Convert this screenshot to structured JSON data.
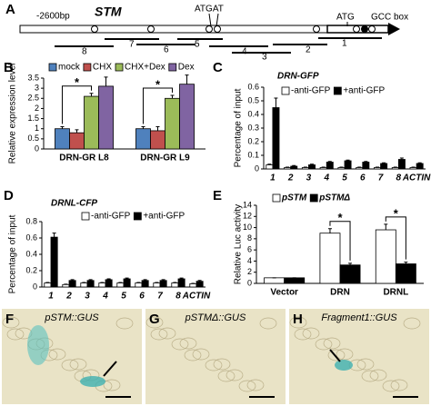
{
  "diagram": {
    "panel": "A",
    "start": "-2600bp",
    "gene": "STM",
    "motif": "ATGAT",
    "atg": "ATG",
    "box": "GCC box",
    "fragments": [
      "1",
      "2",
      "3",
      "4",
      "5",
      "6",
      "7",
      "8"
    ]
  },
  "chart_data": [
    {
      "type": "bar",
      "panel": "B",
      "y_label": "Relative expression level",
      "categories": [
        "DRN-GR L8",
        "DRN-GR L9"
      ],
      "series": [
        {
          "name": "mock",
          "color": "#4f81bd",
          "values": [
            1.0,
            1.0
          ],
          "errors": [
            0.1,
            0.1
          ]
        },
        {
          "name": "CHX",
          "color": "#c0504d",
          "values": [
            0.8,
            0.9
          ],
          "errors": [
            0.15,
            0.2
          ]
        },
        {
          "name": "CHX+Dex",
          "color": "#9bbb59",
          "values": [
            2.6,
            2.5
          ],
          "errors": [
            0.15,
            0.15
          ]
        },
        {
          "name": "Dex",
          "color": "#8064a2",
          "values": [
            3.1,
            3.2
          ],
          "errors": [
            0.45,
            0.45
          ]
        }
      ],
      "annotations": [
        "*",
        "*"
      ],
      "ylim": [
        0,
        3.5
      ],
      "yticks": [
        0,
        0.5,
        1,
        1.5,
        2,
        2.5,
        3,
        3.5
      ]
    },
    {
      "type": "bar",
      "panel": "C",
      "title": "DRN-GFP",
      "y_label": "Percentage of input",
      "categories": [
        "1",
        "2",
        "3",
        "4",
        "5",
        "6",
        "7",
        "8",
        "ACTIN"
      ],
      "series": [
        {
          "name": "-anti-GFP",
          "color": "#ffffff",
          "values": [
            0.03,
            0.01,
            0.01,
            0.01,
            0.01,
            0.01,
            0.01,
            0.01,
            0.01
          ],
          "errors": [
            0.005,
            0.003,
            0.003,
            0.003,
            0.003,
            0.003,
            0.003,
            0.003,
            0.003
          ]
        },
        {
          "name": "+anti-GFP",
          "color": "#000000",
          "values": [
            0.45,
            0.02,
            0.03,
            0.05,
            0.06,
            0.05,
            0.04,
            0.07,
            0.04
          ],
          "errors": [
            0.07,
            0.005,
            0.005,
            0.005,
            0.005,
            0.005,
            0.005,
            0.01,
            0.005
          ]
        }
      ],
      "ylim": [
        0,
        0.6
      ],
      "yticks": [
        0,
        0.1,
        0.2,
        0.3,
        0.4,
        0.5,
        0.6
      ]
    },
    {
      "type": "bar",
      "panel": "D",
      "title": "DRNL-CFP",
      "y_label": "Percentage of input",
      "categories": [
        "1",
        "2",
        "3",
        "4",
        "5",
        "6",
        "7",
        "8",
        "ACTIN"
      ],
      "series": [
        {
          "name": "-anti-GFP",
          "color": "#ffffff",
          "values": [
            0.05,
            0.03,
            0.05,
            0.05,
            0.05,
            0.05,
            0.05,
            0.05,
            0.04
          ],
          "errors": [
            0.005,
            0.005,
            0.005,
            0.005,
            0.005,
            0.005,
            0.005,
            0.005,
            0.005
          ]
        },
        {
          "name": "+anti-GFP",
          "color": "#000000",
          "values": [
            0.61,
            0.08,
            0.08,
            0.09,
            0.1,
            0.08,
            0.08,
            0.1,
            0.07
          ],
          "errors": [
            0.05,
            0.01,
            0.01,
            0.01,
            0.01,
            0.01,
            0.01,
            0.01,
            0.01
          ]
        }
      ],
      "ylim": [
        0,
        0.8
      ],
      "yticks": [
        0,
        0.2,
        0.4,
        0.6,
        0.8
      ]
    },
    {
      "type": "bar",
      "panel": "E",
      "y_label": "Relative Luc activity",
      "categories": [
        "Vector",
        "DRN",
        "DRNL"
      ],
      "series": [
        {
          "name": "pSTM",
          "color": "#ffffff",
          "values": [
            1,
            9,
            9.6
          ],
          "errors": [
            0,
            0.8,
            1.0
          ]
        },
        {
          "name": "pSTMΔ",
          "color": "#000000",
          "values": [
            1,
            3.3,
            3.5
          ],
          "errors": [
            0,
            0.3,
            0.3
          ]
        }
      ],
      "annotations": [
        "*",
        "*"
      ],
      "ylim": [
        0,
        14
      ],
      "yticks": [
        0,
        2,
        4,
        6,
        8,
        10,
        12,
        14
      ]
    }
  ],
  "micrographs": [
    {
      "panel": "F",
      "label": "pSTM::GUS"
    },
    {
      "panel": "G",
      "label": "pSTMΔ::GUS"
    },
    {
      "panel": "H",
      "label": "Fragment1::GUS"
    }
  ]
}
